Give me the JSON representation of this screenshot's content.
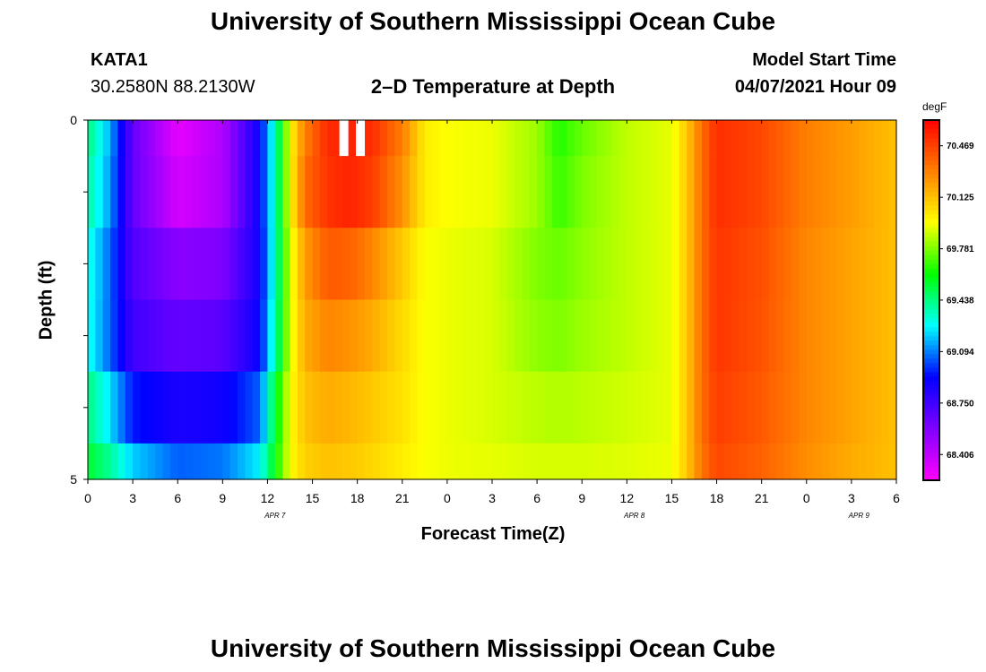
{
  "page": {
    "title_top": "University of Southern Mississippi Ocean Cube",
    "title_bottom": "University of Southern Mississippi Ocean Cube",
    "station_id": "KATA1",
    "station_coords": "30.2580N  88.2130W",
    "chart_title": "2–D Temperature at Depth",
    "model_label": "Model Start Time",
    "model_time": "04/07/2021 Hour 09"
  },
  "chart_data": {
    "type": "heatmap",
    "title": "2–D Temperature at Depth",
    "xlabel": "Forecast Time(Z)",
    "ylabel": "Depth (ft)",
    "colorbar_unit": "degF",
    "x_tick_labels": [
      "0",
      "3",
      "6",
      "9",
      "12",
      "15",
      "18",
      "21",
      "0",
      "3",
      "6",
      "9",
      "12",
      "15",
      "18",
      "21",
      "0",
      "3",
      "6"
    ],
    "date_labels": [
      {
        "text": "APR 7",
        "hour": 12.5
      },
      {
        "text": "APR 8",
        "hour": 36.5
      },
      {
        "text": "APR 9",
        "hour": 51.5
      }
    ],
    "y_tick_labels": [
      "0",
      "5"
    ],
    "ylim": [
      0,
      5
    ],
    "x_hours": [
      0,
      54
    ],
    "colorbar_ticks": [
      "70.469",
      "70.125",
      "69.781",
      "69.438",
      "69.094",
      "68.750",
      "68.406"
    ],
    "clim": [
      68.234,
      70.641
    ],
    "depth_bands": [
      0,
      0.5,
      1.5,
      2.5,
      3.5,
      4.5,
      5
    ],
    "time_hours": [
      0,
      1.5,
      3,
      6,
      9,
      11.5,
      12.5,
      13.5,
      14.5,
      16,
      17.5,
      19,
      21,
      22.5,
      24,
      27,
      30,
      31.5,
      33,
      36,
      39,
      40,
      41,
      42,
      45,
      48,
      51,
      54
    ],
    "rows": [
      [
        69.45,
        69.15,
        68.65,
        68.3,
        68.45,
        68.9,
        69.35,
        69.95,
        70.3,
        70.53,
        70.55,
        70.52,
        70.3,
        70.0,
        69.95,
        69.93,
        69.82,
        69.65,
        69.75,
        69.87,
        69.92,
        70.1,
        70.35,
        70.52,
        70.45,
        70.3,
        70.22,
        70.12
      ],
      [
        69.4,
        69.12,
        68.65,
        68.35,
        68.45,
        68.9,
        69.35,
        69.95,
        70.35,
        70.5,
        70.55,
        70.48,
        70.25,
        70.0,
        69.95,
        69.93,
        69.82,
        69.68,
        69.78,
        69.87,
        69.92,
        70.1,
        70.35,
        70.52,
        70.45,
        70.3,
        70.22,
        70.12
      ],
      [
        69.32,
        69.05,
        68.7,
        68.55,
        68.58,
        68.88,
        69.35,
        69.9,
        70.22,
        70.4,
        70.38,
        70.28,
        70.1,
        69.95,
        69.93,
        69.9,
        69.78,
        69.75,
        69.8,
        69.87,
        69.92,
        70.1,
        70.35,
        70.5,
        70.43,
        70.28,
        70.2,
        70.12
      ],
      [
        69.3,
        69.05,
        68.75,
        68.65,
        68.68,
        68.9,
        69.38,
        69.9,
        70.18,
        70.28,
        70.25,
        70.18,
        70.05,
        69.95,
        69.93,
        69.9,
        69.8,
        69.78,
        69.82,
        69.87,
        69.92,
        70.1,
        70.35,
        70.5,
        70.42,
        70.28,
        70.2,
        70.12
      ],
      [
        69.45,
        69.22,
        68.95,
        68.85,
        68.88,
        69.05,
        69.55,
        69.95,
        70.12,
        70.18,
        70.15,
        70.1,
        70.03,
        69.95,
        69.93,
        69.9,
        69.86,
        69.85,
        69.86,
        69.89,
        69.92,
        70.1,
        70.35,
        70.48,
        70.4,
        70.28,
        70.2,
        70.12
      ],
      [
        69.55,
        69.4,
        69.2,
        69.05,
        69.08,
        69.25,
        69.6,
        69.95,
        70.08,
        70.12,
        70.1,
        70.06,
        70.0,
        69.95,
        69.93,
        69.92,
        69.9,
        69.9,
        69.9,
        69.91,
        69.93,
        70.1,
        70.33,
        70.45,
        70.38,
        70.26,
        70.18,
        70.12
      ]
    ],
    "missing_cells": [
      {
        "row": 0,
        "h0": 16.8,
        "h1": 17.4
      },
      {
        "row": 0,
        "h0": 17.9,
        "h1": 18.5
      }
    ],
    "colors": {
      "missing": "#ffffff",
      "colormap": [
        "#ff00ff",
        "#8000ff",
        "#0000ff",
        "#00ffff",
        "#00ff00",
        "#ffff00",
        "#ff8000",
        "#ff0000"
      ]
    }
  }
}
